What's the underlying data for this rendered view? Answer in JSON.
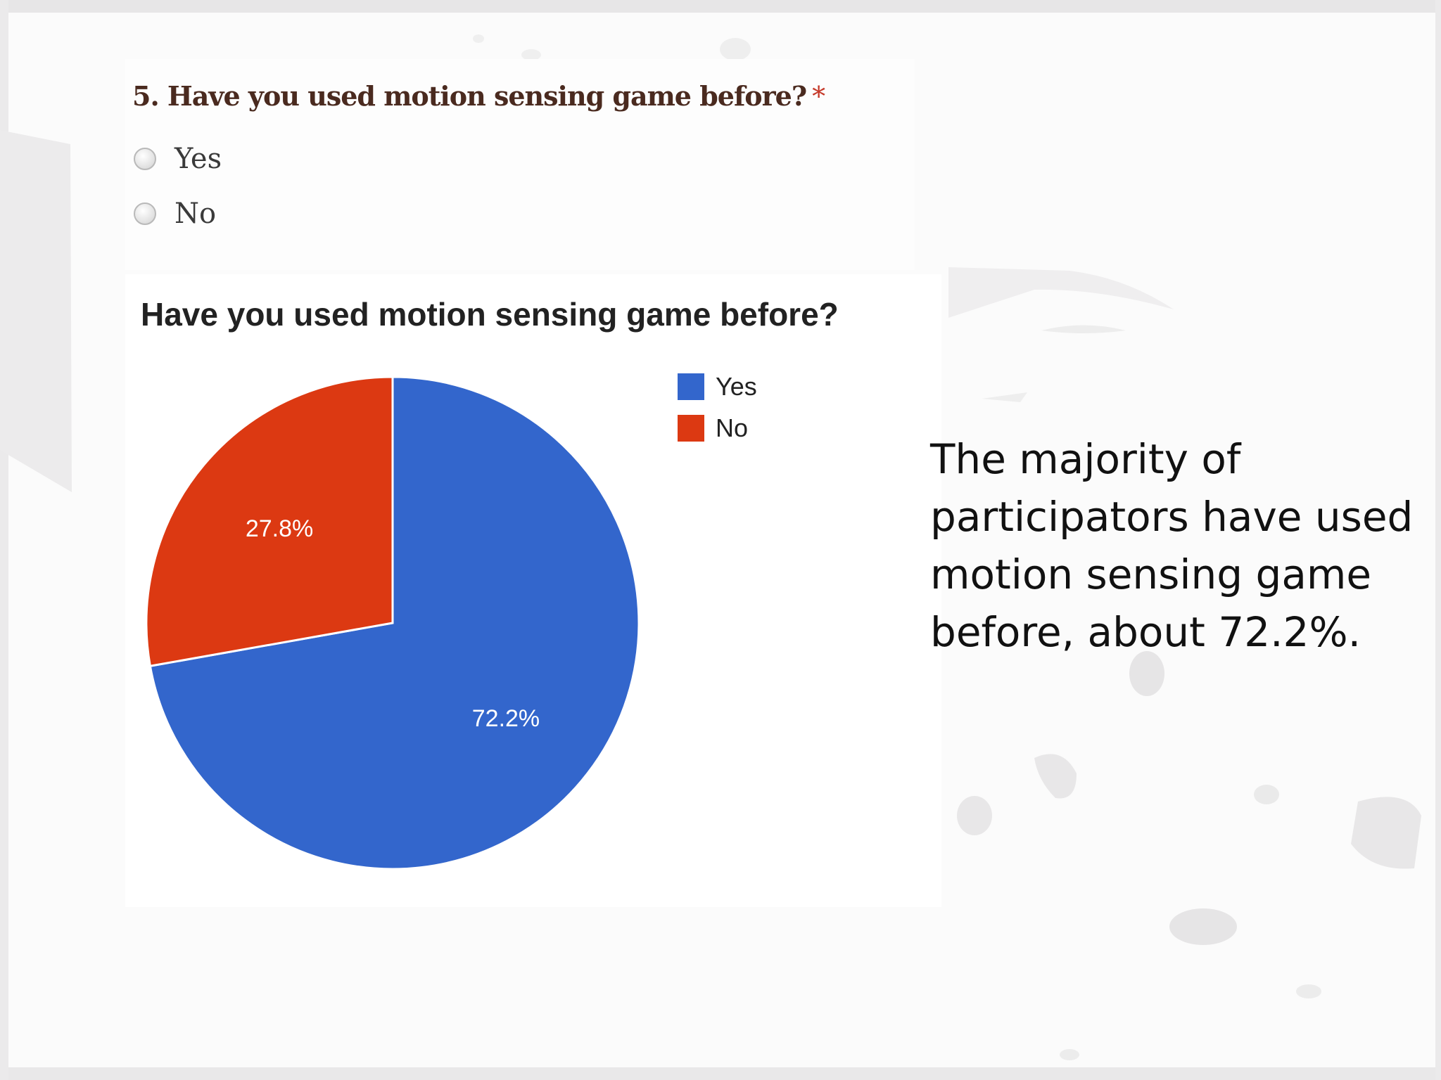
{
  "colors": {
    "yes": "#3366cc",
    "no": "#dc3912",
    "required_star": "#c53929",
    "background": "#fbfbfb"
  },
  "form": {
    "question": "5. Have you used motion sensing game before?",
    "required_mark": "*",
    "options": [
      "Yes",
      "No"
    ]
  },
  "chart_data": {
    "type": "pie",
    "title": "Have you used motion sensing game before?",
    "categories": [
      "Yes",
      "No"
    ],
    "values": [
      72.2,
      27.8
    ],
    "labels": [
      "72.2%",
      "27.8%"
    ],
    "colors": [
      "#3366cc",
      "#dc3912"
    ],
    "start": "12 o'clock, clockwise",
    "legend": [
      "Yes",
      "No"
    ],
    "legend_position": "top-right"
  },
  "summary": "The majority of participators have used motion sensing game before, about 72.2%."
}
